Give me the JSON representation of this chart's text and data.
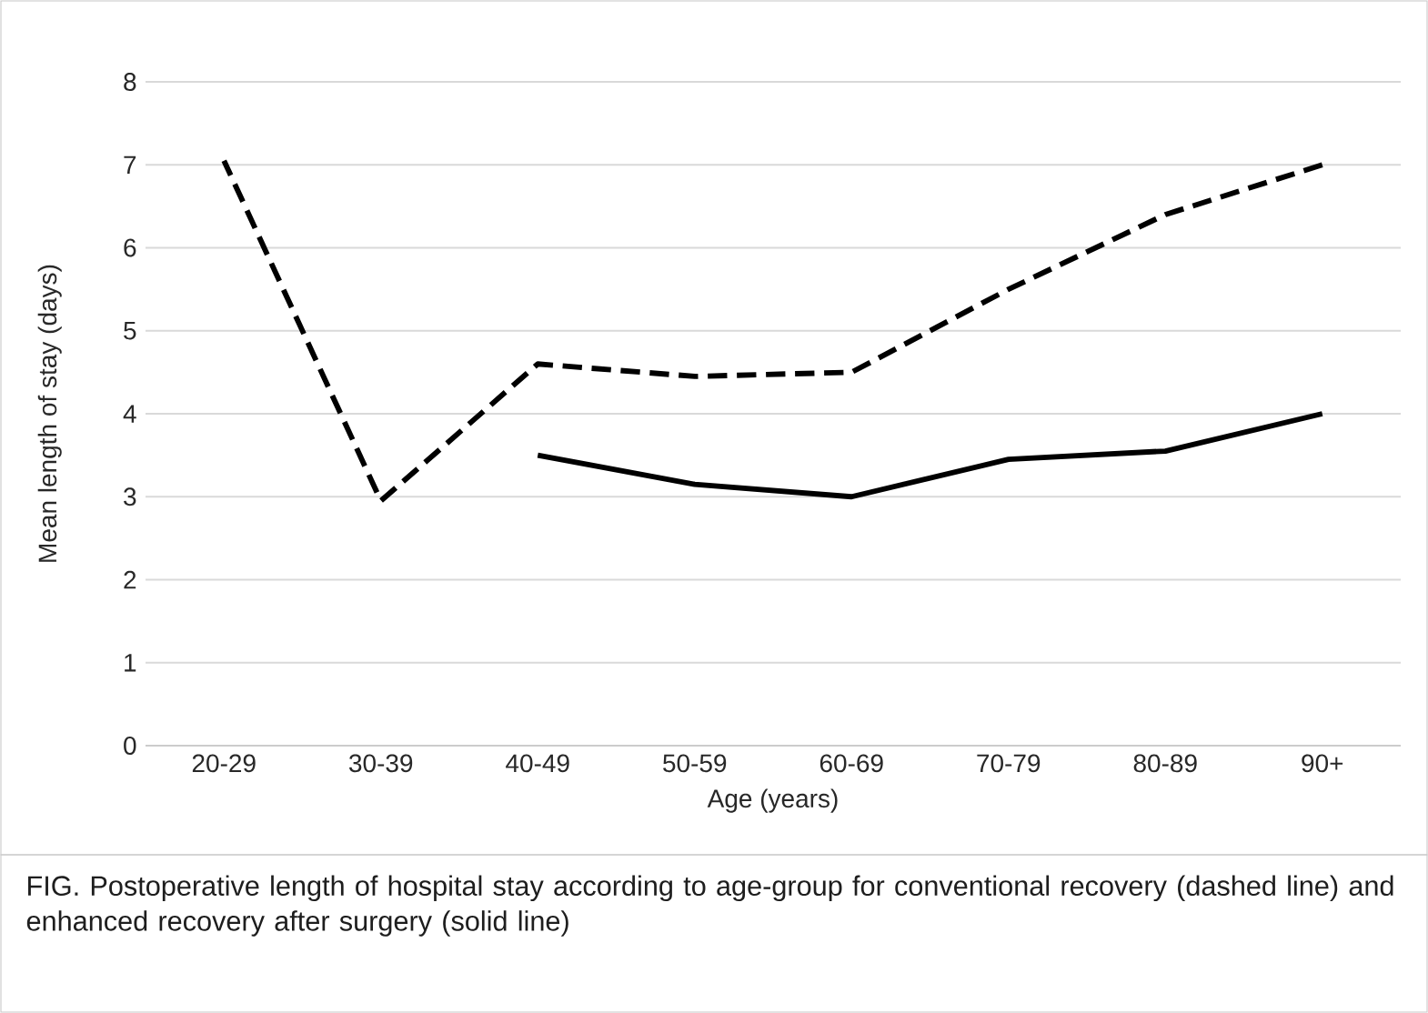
{
  "chart_data": {
    "type": "line",
    "xlabel": "Age (years)",
    "ylabel": "Mean length of stay (days)",
    "categories": [
      "20-29",
      "30-39",
      "40-49",
      "50-59",
      "60-69",
      "70-79",
      "80-89",
      "90+"
    ],
    "series": [
      {
        "color": "#000000",
        "line_style": "dashed",
        "values": [
          7.05,
          2.95,
          4.6,
          4.45,
          4.5,
          5.5,
          6.4,
          7.0
        ]
      },
      {
        "color": "#000000",
        "line_style": "solid",
        "values": [
          null,
          null,
          3.5,
          3.15,
          3.0,
          3.45,
          3.55,
          4.0
        ]
      }
    ],
    "ylim": [
      0,
      8
    ],
    "yticks": [
      0,
      1,
      2,
      3,
      4,
      5,
      6,
      7,
      8
    ],
    "grid": "y",
    "marker": "none",
    "annotations": [
      "FIG.  Postoperative length of hospital stay according to age-group for conventional recovery (dashed line) and enhanced recovery after surgery (solid line)"
    ]
  }
}
